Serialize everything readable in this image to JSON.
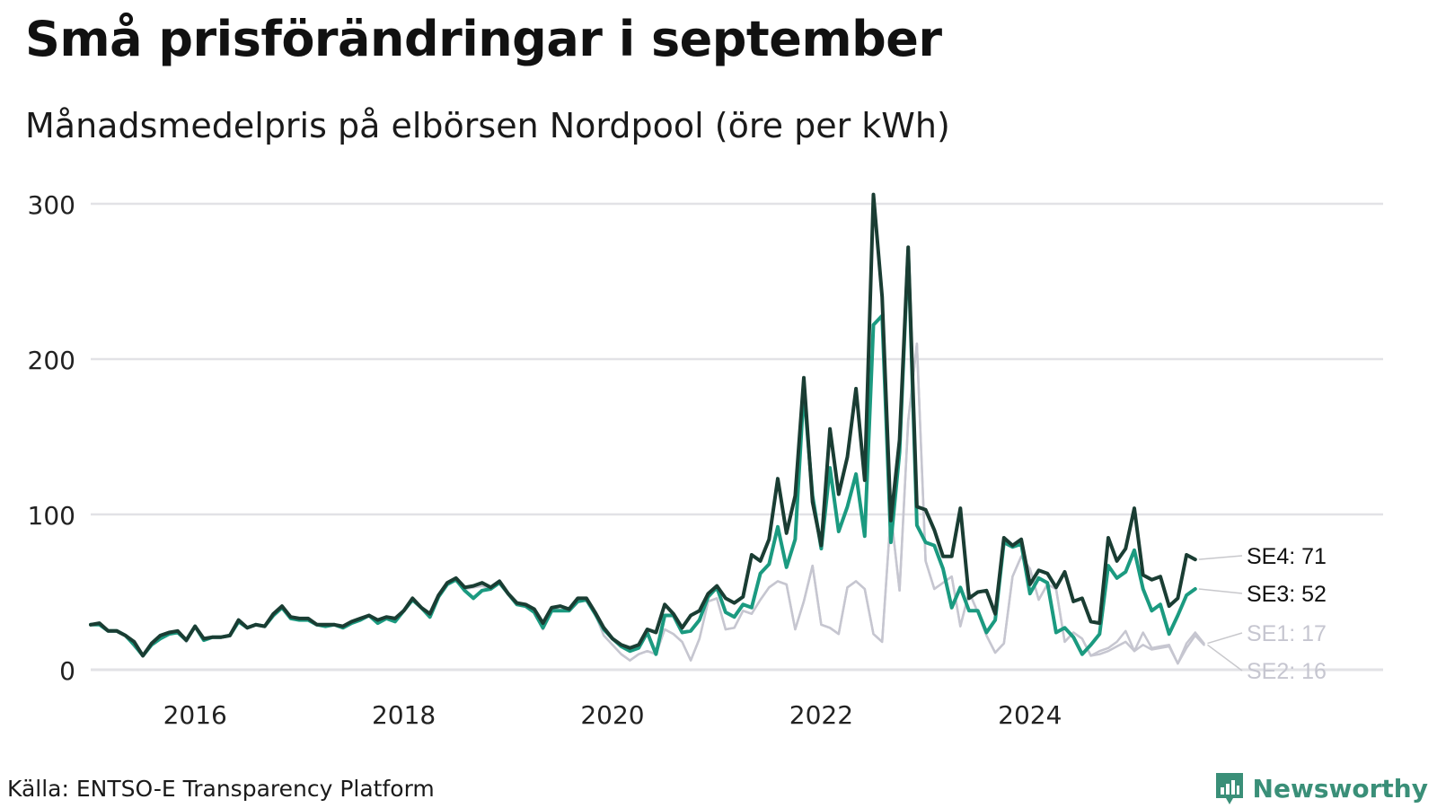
{
  "title": "Små prisförändringar i september",
  "subtitle": "Månadsmedelpris på elbörsen Nordpool (öre per kWh)",
  "source": "Källa: ENTSO-E Transparency Platform",
  "brand": "Newsworthy",
  "colors": {
    "SE4": "#1a3d33",
    "SE3": "#1b9a80",
    "SE1": "#c6c6d0",
    "SE2": "#c6c6d0",
    "grid": "#e2e2e6",
    "brand": "#3a8f78"
  },
  "chart_data": {
    "type": "line",
    "title": "Små prisförändringar i september",
    "ylabel": "öre per kWh",
    "xlabel": "",
    "start": "2015-01",
    "ylim": [
      0,
      300
    ],
    "yticks": [
      0,
      100,
      200,
      300
    ],
    "xticks": [
      {
        "label": "2016",
        "value": 2016
      },
      {
        "label": "2018",
        "value": 2018
      },
      {
        "label": "2020",
        "value": 2020
      },
      {
        "label": "2022",
        "value": 2022
      },
      {
        "label": "2024",
        "value": 2024
      }
    ],
    "grid": true,
    "series": [
      {
        "name": "SE1",
        "label": "SE1: 17",
        "values": [
          29,
          29,
          25,
          25,
          22,
          15,
          9,
          16,
          20,
          23,
          24,
          18,
          28,
          19,
          21,
          21,
          22,
          31,
          27,
          29,
          28,
          35,
          40,
          34,
          32,
          33,
          29,
          28,
          29,
          27,
          30,
          32,
          35,
          30,
          34,
          32,
          38,
          45,
          40,
          34,
          47,
          55,
          58,
          52,
          53,
          54,
          52,
          56,
          49,
          42,
          42,
          38,
          26,
          38,
          41,
          38,
          44,
          45,
          36,
          22,
          16,
          10,
          6,
          10,
          12,
          10,
          26,
          23,
          18,
          6,
          20,
          44,
          46,
          26,
          27,
          38,
          36,
          45,
          53,
          57,
          55,
          26,
          44,
          67,
          29,
          27,
          23,
          53,
          57,
          52,
          23,
          18,
          101,
          51,
          160,
          210,
          70,
          52,
          56,
          60,
          28,
          50,
          37,
          22,
          11,
          17,
          60,
          73,
          65,
          45,
          55,
          52,
          18,
          24,
          20,
          9,
          12,
          14,
          18,
          25,
          12,
          24,
          14,
          15,
          16,
          4,
          17,
          24,
          17
        ]
      },
      {
        "name": "SE2",
        "label": "SE2: 16",
        "values": [
          29,
          29,
          25,
          25,
          22,
          15,
          9,
          16,
          20,
          23,
          24,
          18,
          28,
          19,
          21,
          21,
          22,
          31,
          27,
          29,
          28,
          35,
          40,
          34,
          32,
          33,
          29,
          28,
          29,
          27,
          30,
          32,
          35,
          30,
          34,
          32,
          38,
          45,
          40,
          34,
          47,
          55,
          58,
          52,
          53,
          54,
          52,
          56,
          49,
          42,
          42,
          38,
          26,
          38,
          41,
          38,
          44,
          45,
          36,
          22,
          16,
          10,
          6,
          10,
          12,
          10,
          26,
          23,
          18,
          6,
          20,
          44,
          46,
          26,
          27,
          38,
          36,
          45,
          53,
          57,
          55,
          26,
          44,
          67,
          29,
          27,
          23,
          53,
          57,
          52,
          23,
          18,
          101,
          51,
          160,
          210,
          70,
          52,
          56,
          60,
          28,
          50,
          37,
          22,
          11,
          17,
          60,
          73,
          65,
          45,
          55,
          52,
          18,
          24,
          20,
          9,
          10,
          12,
          15,
          18,
          12,
          16,
          13,
          14,
          15,
          4,
          14,
          22,
          16
        ]
      },
      {
        "name": "SE3",
        "label": "SE3: 52",
        "values": [
          29,
          29,
          25,
          25,
          22,
          16,
          9,
          16,
          20,
          23,
          24,
          19,
          28,
          19,
          21,
          21,
          22,
          31,
          27,
          29,
          28,
          35,
          40,
          33,
          32,
          32,
          29,
          28,
          29,
          27,
          30,
          32,
          35,
          30,
          33,
          31,
          38,
          45,
          40,
          34,
          47,
          55,
          58,
          51,
          46,
          51,
          52,
          56,
          49,
          42,
          41,
          37,
          27,
          38,
          38,
          38,
          44,
          45,
          36,
          26,
          20,
          15,
          12,
          14,
          24,
          10,
          35,
          35,
          24,
          25,
          32,
          47,
          53,
          37,
          34,
          42,
          40,
          62,
          68,
          92,
          66,
          84,
          180,
          112,
          78,
          130,
          89,
          105,
          126,
          86,
          222,
          228,
          82,
          140,
          270,
          93,
          82,
          80,
          65,
          40,
          53,
          38,
          38,
          24,
          32,
          82,
          79,
          81,
          49,
          59,
          56,
          24,
          27,
          21,
          10,
          16,
          23,
          67,
          59,
          63,
          77,
          52,
          38,
          42,
          23,
          35,
          48,
          52
        ]
      },
      {
        "name": "SE4",
        "label": "SE4: 71",
        "values": [
          29,
          30,
          25,
          25,
          22,
          18,
          9,
          17,
          22,
          24,
          25,
          19,
          28,
          20,
          21,
          21,
          22,
          32,
          27,
          29,
          28,
          36,
          41,
          34,
          33,
          33,
          29,
          29,
          29,
          28,
          31,
          33,
          35,
          32,
          34,
          33,
          38,
          46,
          40,
          36,
          48,
          56,
          59,
          53,
          54,
          56,
          53,
          57,
          49,
          43,
          42,
          39,
          30,
          40,
          41,
          39,
          46,
          46,
          37,
          27,
          20,
          16,
          14,
          16,
          26,
          24,
          42,
          36,
          27,
          35,
          38,
          49,
          54,
          46,
          43,
          47,
          74,
          70,
          84,
          123,
          88,
          112,
          188,
          108,
          80,
          155,
          113,
          137,
          181,
          122,
          306,
          240,
          96,
          148,
          272,
          105,
          103,
          90,
          73,
          73,
          104,
          46,
          50,
          51,
          36,
          85,
          80,
          84,
          55,
          64,
          62,
          53,
          63,
          44,
          46,
          31,
          30,
          85,
          70,
          78,
          104,
          61,
          58,
          60,
          41,
          46,
          74,
          71
        ]
      }
    ]
  }
}
